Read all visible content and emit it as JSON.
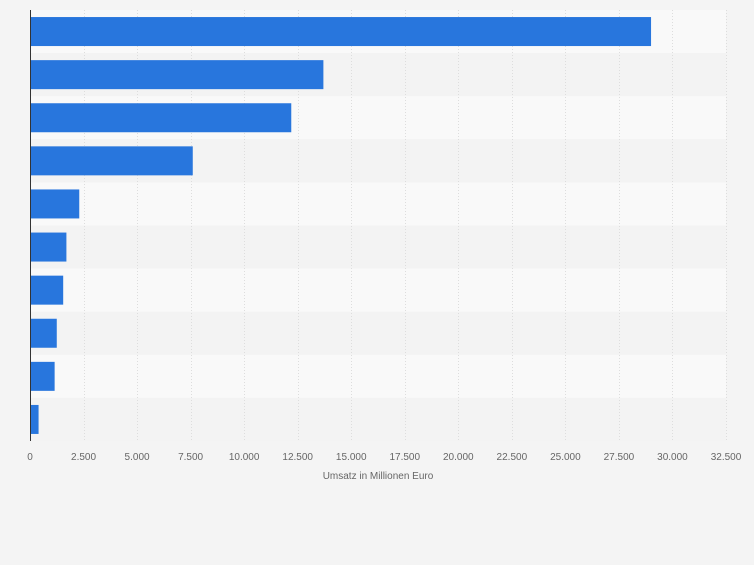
{
  "chart_data": {
    "type": "bar",
    "orientation": "horizontal",
    "categories": [
      "",
      "",
      "",
      "",
      "",
      "",
      "",
      "",
      "",
      ""
    ],
    "values": [
      29000,
      13700,
      12200,
      7600,
      2300,
      1700,
      1550,
      1250,
      1150,
      400
    ],
    "xlabel": "Umsatz in Millionen Euro",
    "ylabel": "",
    "xlim": [
      0,
      32500
    ],
    "x_ticks": [
      0,
      2500,
      5000,
      7500,
      10000,
      12500,
      15000,
      17500,
      20000,
      22500,
      25000,
      27500,
      30000,
      32500
    ],
    "x_tick_labels": [
      "0",
      "2.500",
      "5.000",
      "7.500",
      "10.000",
      "12.500",
      "15.000",
      "17.500",
      "20.000",
      "22.500",
      "25.000",
      "27.500",
      "30.000",
      "32.500"
    ],
    "grid": true,
    "legend": "none",
    "colors": {
      "bar": "#2876dd",
      "band_light": "#f9f9f9",
      "band_dark": "#f3f3f3",
      "grid": "#dddddd",
      "axis": "#333333",
      "tick_text": "#666666"
    }
  }
}
